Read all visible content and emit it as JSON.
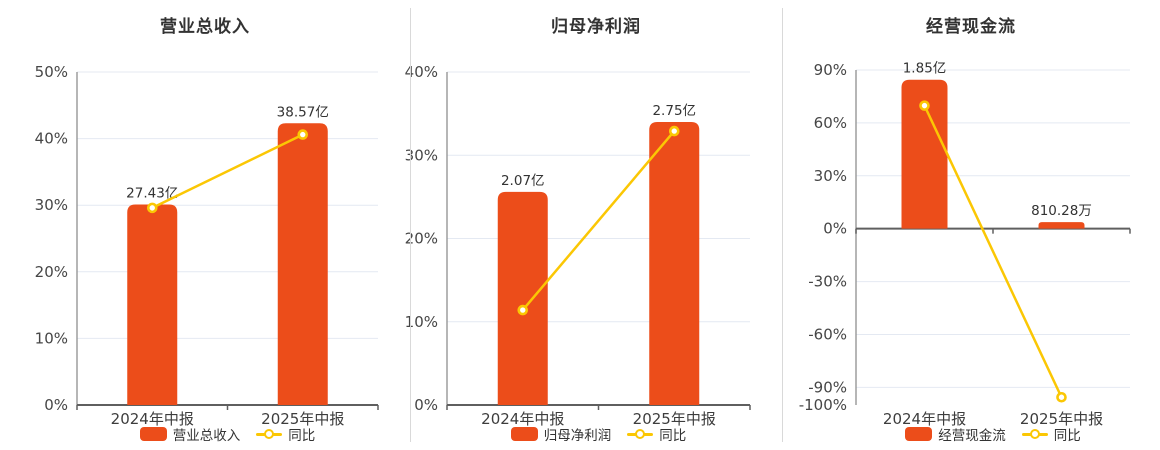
{
  "colors": {
    "bar": "#ec4d1a",
    "line": "#fbc704",
    "marker_fill": "#ffffff",
    "grid": "#e4e9f2",
    "axis_x": "#5f5f5f",
    "axis_y": "#8f8f8f",
    "text_primary": "#333333",
    "text_tick": "#464646",
    "divider": "#d9d9d9"
  },
  "chart_data": [
    {
      "type": "bar",
      "title": "营业总收入",
      "categories": [
        "2024年中报",
        "2025年中报"
      ],
      "bar_series": {
        "name": "营业总收入",
        "value_labels": [
          "27.43亿",
          "38.57亿"
        ],
        "height_on_pct_axis": [
          30.1,
          42.3
        ]
      },
      "line_series": {
        "name": "同比",
        "values_pct": [
          29.6,
          40.6
        ]
      },
      "y_axis": {
        "range": [
          0,
          50
        ],
        "ticks": [
          50,
          40,
          30,
          20,
          10,
          0
        ],
        "suffix": "%",
        "no_gridline_at": [
          0
        ]
      },
      "legend_position": "bottom",
      "grid": true
    },
    {
      "type": "bar",
      "title": "归母净利润",
      "categories": [
        "2024年中报",
        "2025年中报"
      ],
      "bar_series": {
        "name": "归母净利润",
        "value_labels": [
          "2.07亿",
          "2.75亿"
        ],
        "height_on_pct_axis": [
          25.6,
          34.0
        ]
      },
      "line_series": {
        "name": "同比",
        "values_pct": [
          11.4,
          32.9
        ]
      },
      "y_axis": {
        "range": [
          0,
          40
        ],
        "ticks": [
          40,
          30,
          20,
          10,
          0
        ],
        "suffix": "%",
        "no_gridline_at": [
          0
        ]
      },
      "legend_position": "bottom",
      "grid": true
    },
    {
      "type": "bar",
      "title": "经营现金流",
      "categories": [
        "2024年中报",
        "2025年中报"
      ],
      "bar_series": {
        "name": "经营现金流",
        "value_labels": [
          "1.85亿",
          "810.28万"
        ],
        "height_on_pct_axis": [
          84.5,
          3.7
        ]
      },
      "line_series": {
        "name": "同比",
        "values_pct": [
          69.8,
          -95.6
        ]
      },
      "y_axis": {
        "range": [
          -100,
          90
        ],
        "ticks": [
          90,
          60,
          30,
          0,
          -30,
          -60,
          -90,
          -100
        ],
        "suffix": "%",
        "no_gridline_at": [
          0,
          -100
        ]
      },
      "legend_position": "bottom",
      "grid": true
    }
  ]
}
